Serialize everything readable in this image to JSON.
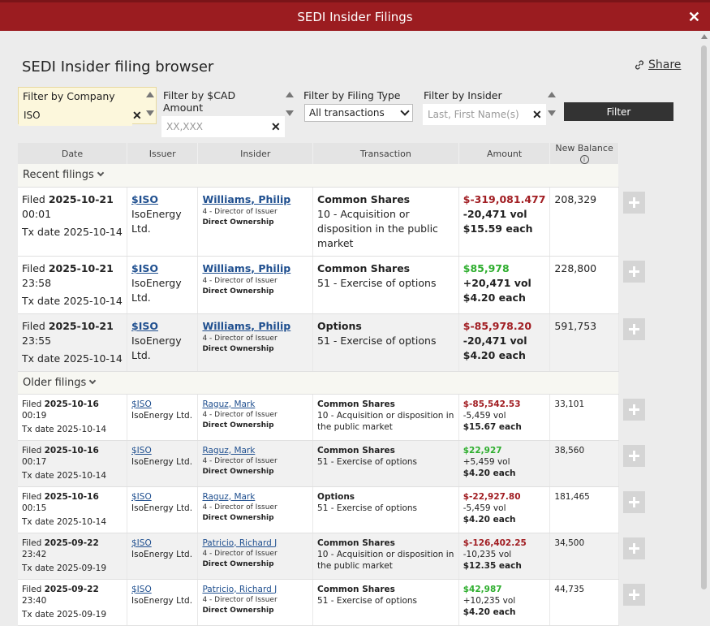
{
  "window": {
    "title": "SEDI Insider Filings"
  },
  "page": {
    "heading": "SEDI Insider filing browser",
    "share_label": "Share"
  },
  "filters": {
    "company": {
      "label": "Filter by Company",
      "value": "ISO"
    },
    "amount": {
      "label": "Filter by $CAD Amount",
      "placeholder": "XX,XXX"
    },
    "filing_type": {
      "label": "Filter by Filing Type",
      "selected": "All transactions"
    },
    "insider": {
      "label": "Filter by Insider",
      "placeholder": "Last, First Name(s)"
    },
    "button_label": "Filter"
  },
  "table": {
    "headers": [
      "Date",
      "Issuer",
      "Insider",
      "Transaction",
      "Amount",
      "New Balance"
    ],
    "recent_label": "Recent filings",
    "older_label": "Older filings",
    "filed_prefix": "Filed",
    "tx_prefix": "Tx date",
    "recent": [
      {
        "filed_date": "2025-10-21",
        "filed_time": "00:01",
        "tx_date": "2025-10-14",
        "ticker": "$ISO",
        "issuer": "IsoEnergy Ltd.",
        "insider": "Williams, Philip",
        "role": "4 - Director of Issuer",
        "ownership": "Direct Ownership",
        "security": "Common Shares",
        "txn": "10 - Acquisition or disposition in the public market",
        "amount": "$-319,081.477",
        "amount_sign": "neg",
        "vol": "-20,471 vol",
        "price": "$15.59 each",
        "balance": "208,329"
      },
      {
        "filed_date": "2025-10-21",
        "filed_time": "23:58",
        "tx_date": "2025-10-14",
        "ticker": "$ISO",
        "issuer": "IsoEnergy Ltd.",
        "insider": "Williams, Philip",
        "role": "4 - Director of Issuer",
        "ownership": "Direct Ownership",
        "security": "Common Shares",
        "txn": "51 - Exercise of options",
        "amount": "$85,978",
        "amount_sign": "pos",
        "vol": "+20,471 vol",
        "price": "$4.20 each",
        "balance": "228,800"
      },
      {
        "filed_date": "2025-10-21",
        "filed_time": "23:55",
        "tx_date": "2025-10-14",
        "ticker": "$ISO",
        "issuer": "IsoEnergy Ltd.",
        "insider": "Williams, Philip",
        "role": "4 - Director of Issuer",
        "ownership": "Direct Ownership",
        "security": "Options",
        "txn": "51 - Exercise of options",
        "amount": "$-85,978.20",
        "amount_sign": "neg",
        "vol": "-20,471 vol",
        "price": "$4.20 each",
        "balance": "591,753"
      }
    ],
    "older": [
      {
        "filed_date": "2025-10-16",
        "filed_time": "00:19",
        "tx_date": "2025-10-14",
        "ticker": "$ISO",
        "issuer": "IsoEnergy Ltd.",
        "insider": "Raguz, Mark",
        "role": "4 - Director of Issuer",
        "ownership": "Direct Ownership",
        "security": "Common Shares",
        "txn": "10 - Acquisition or disposition in the public market",
        "amount": "$-85,542.53",
        "amount_sign": "neg",
        "vol": "-5,459 vol",
        "price": "$15.67 each",
        "balance": "33,101"
      },
      {
        "filed_date": "2025-10-16",
        "filed_time": "00:17",
        "tx_date": "2025-10-14",
        "ticker": "$ISO",
        "issuer": "IsoEnergy Ltd.",
        "insider": "Raguz, Mark",
        "role": "4 - Director of Issuer",
        "ownership": "Direct Ownership",
        "security": "Common Shares",
        "txn": "51 - Exercise of options",
        "amount": "$22,927",
        "amount_sign": "pos",
        "vol": "+5,459 vol",
        "price": "$4.20 each",
        "balance": "38,560"
      },
      {
        "filed_date": "2025-10-16",
        "filed_time": "00:15",
        "tx_date": "2025-10-14",
        "ticker": "$ISO",
        "issuer": "IsoEnergy Ltd.",
        "insider": "Raguz, Mark",
        "role": "4 - Director of Issuer",
        "ownership": "Direct Ownership",
        "security": "Options",
        "txn": "51 - Exercise of options",
        "amount": "$-22,927.80",
        "amount_sign": "neg",
        "vol": "-5,459 vol",
        "price": "$4.20 each",
        "balance": "181,465"
      },
      {
        "filed_date": "2025-09-22",
        "filed_time": "23:42",
        "tx_date": "2025-09-19",
        "ticker": "$ISO",
        "issuer": "IsoEnergy Ltd.",
        "insider": "Patricio, Richard J",
        "role": "4 - Director of Issuer",
        "ownership": "Direct Ownership",
        "security": "Common Shares",
        "txn": "10 - Acquisition or disposition in the public market",
        "amount": "$-126,402.25",
        "amount_sign": "neg",
        "vol": "-10,235 vol",
        "price": "$12.35 each",
        "balance": "34,500"
      },
      {
        "filed_date": "2025-09-22",
        "filed_time": "23:40",
        "tx_date": "2025-09-19",
        "ticker": "$ISO",
        "issuer": "IsoEnergy Ltd.",
        "insider": "Patricio, Richard J",
        "role": "4 - Director of Issuer",
        "ownership": "Direct Ownership",
        "security": "Common Shares",
        "txn": "51 - Exercise of options",
        "amount": "$42,987",
        "amount_sign": "pos",
        "vol": "+10,235 vol",
        "price": "$4.20 each",
        "balance": "44,735"
      }
    ]
  },
  "colors": {
    "titlebar": "#9b1c20",
    "negative": "#a11d22",
    "positive": "#2eae2e",
    "link": "#1f4f8f"
  },
  "icons": {
    "close": "close-icon",
    "share": "link-icon",
    "info": "info-icon",
    "expand": "plus-icon",
    "chevron": "chevron-down-icon"
  }
}
